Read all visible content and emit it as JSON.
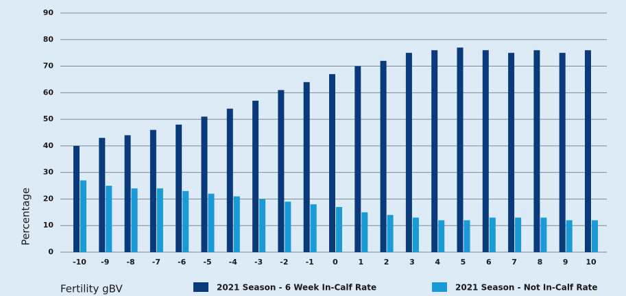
{
  "chart_data": {
    "type": "bar",
    "x_label": "Fertility gBV",
    "y_label": "Percentage",
    "categories": [
      "-10",
      "-9",
      "-8",
      "-7",
      "-6",
      "-5",
      "-4",
      "-3",
      "-2",
      "-1",
      "0",
      "1",
      "2",
      "3",
      "4",
      "5",
      "6",
      "7",
      "8",
      "9",
      "10"
    ],
    "series": [
      {
        "name": "2021 Season - 6 Week In-Calf Rate",
        "color": "#0b3a7a",
        "values": [
          40,
          43,
          44,
          46,
          48,
          51,
          54,
          57,
          61,
          64,
          67,
          70,
          72,
          75,
          76,
          77,
          76,
          75,
          76,
          75,
          76
        ]
      },
      {
        "name": "2021 Season - Not In-Calf Rate",
        "color": "#1a9ad6",
        "values": [
          27,
          25,
          24,
          24,
          23,
          22,
          21,
          20,
          19,
          18,
          17,
          15,
          14,
          13,
          12,
          12,
          13,
          13,
          13,
          12,
          12
        ]
      }
    ],
    "ylim": [
      0,
      90
    ],
    "yticks": [
      0,
      10,
      20,
      30,
      40,
      50,
      60,
      70,
      80,
      90
    ],
    "grid": true
  }
}
